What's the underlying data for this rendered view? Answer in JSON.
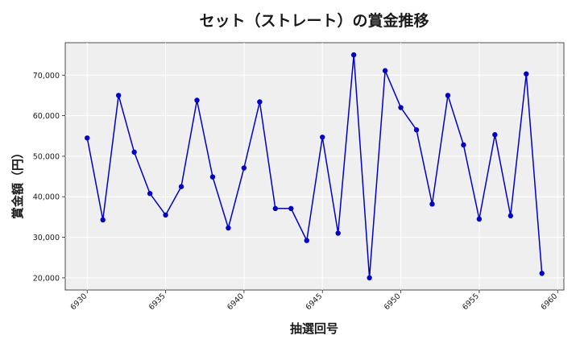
{
  "chart_data": {
    "type": "line",
    "title": "セット（ストレート）の賞金推移",
    "xlabel": "抽選回号",
    "ylabel": "賞金額（円）",
    "xlim": [
      6928.6,
      6960.4
    ],
    "ylim": [
      17000,
      78000
    ],
    "xticks": [
      6930,
      6935,
      6940,
      6945,
      6950,
      6955,
      6960
    ],
    "yticks": [
      20000,
      30000,
      40000,
      50000,
      60000,
      70000
    ],
    "ytick_labels": [
      "20,000",
      "30,000",
      "40,000",
      "50,000",
      "60,000",
      "70,000"
    ],
    "grid": true,
    "series_color": "#0000cc",
    "background_color": "#efefef",
    "x": [
      6930,
      6931,
      6932,
      6933,
      6934,
      6935,
      6936,
      6937,
      6938,
      6939,
      6940,
      6941,
      6942,
      6943,
      6944,
      6945,
      6946,
      6947,
      6948,
      6949,
      6950,
      6951,
      6952,
      6953,
      6954,
      6955,
      6956,
      6957,
      6958,
      6959
    ],
    "values": [
      54500,
      34300,
      65000,
      51000,
      40800,
      35500,
      42500,
      63800,
      44900,
      32300,
      47100,
      63400,
      37100,
      37100,
      29200,
      54700,
      31000,
      75000,
      20000,
      71100,
      62000,
      56500,
      38200,
      65000,
      52800,
      34500,
      55300,
      35300,
      70300,
      21100
    ]
  }
}
